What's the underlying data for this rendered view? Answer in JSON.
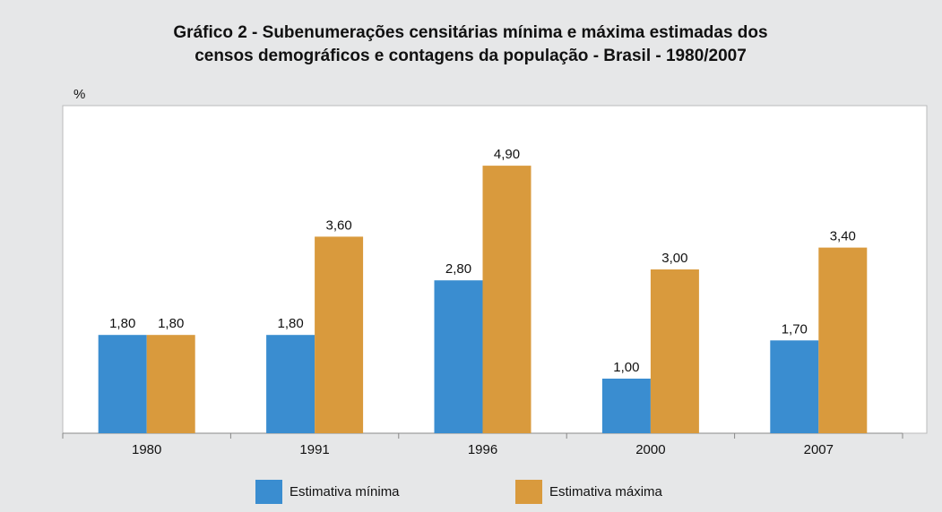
{
  "chart_data": {
    "type": "bar",
    "title": [
      "Gráfico 2 - Subenumerações censitárias mínima e máxima estimadas dos",
      "censos demográficos e contagens da população - Brasil - 1980/2007"
    ],
    "y_label": "%",
    "categories": [
      "1980",
      "1991",
      "1996",
      "2000",
      "2007"
    ],
    "series": [
      {
        "name": "Estimativa mínima",
        "color": "#3a8dd0",
        "values": [
          1.8,
          1.8,
          2.8,
          1.0,
          1.7
        ],
        "value_labels": [
          "1,80",
          "1,80",
          "2,80",
          "1,00",
          "1,70"
        ]
      },
      {
        "name": "Estimativa máxima",
        "color": "#d99a3d",
        "values": [
          1.8,
          3.6,
          4.9,
          3.0,
          3.4
        ],
        "value_labels": [
          "1,80",
          "3,60",
          "4,90",
          "3,00",
          "3,40"
        ]
      }
    ],
    "ylim": [
      0,
      6
    ]
  }
}
